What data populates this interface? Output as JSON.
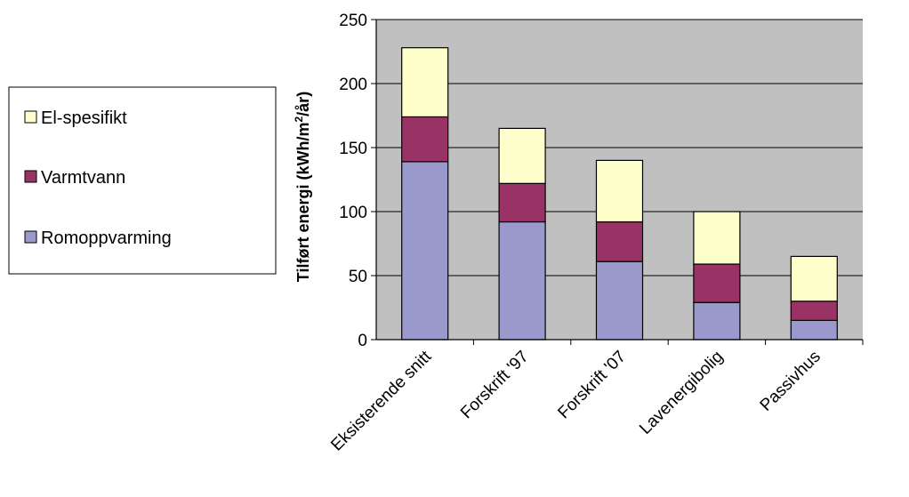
{
  "chart_data": {
    "type": "bar",
    "stacked": true,
    "categories": [
      "Eksisterende snitt",
      "Forskrift '97",
      "Forskrift '07",
      "Lavenergibolig",
      "Passivhus"
    ],
    "series": [
      {
        "name": "Romoppvarming",
        "values": [
          139,
          92,
          61,
          29,
          15
        ],
        "color": "#9999cc"
      },
      {
        "name": "Varmtvann",
        "values": [
          35,
          30,
          31,
          30,
          15
        ],
        "color": "#993366"
      },
      {
        "name": "El-spesifikt",
        "values": [
          54,
          43,
          48,
          41,
          35
        ],
        "color": "#ffffcc"
      }
    ],
    "ylabel": {
      "main": "Tilført energi (kWh/m",
      "sup": "2",
      "tail": "/år)"
    },
    "ylim": [
      0,
      250
    ],
    "yticks": [
      0,
      50,
      100,
      150,
      200,
      250
    ],
    "grid": true,
    "plot_background": "#c0c0c0",
    "legend": {
      "placement": "left",
      "order": [
        "El-spesifikt",
        "Varmtvann",
        "Romoppvarming"
      ]
    }
  }
}
